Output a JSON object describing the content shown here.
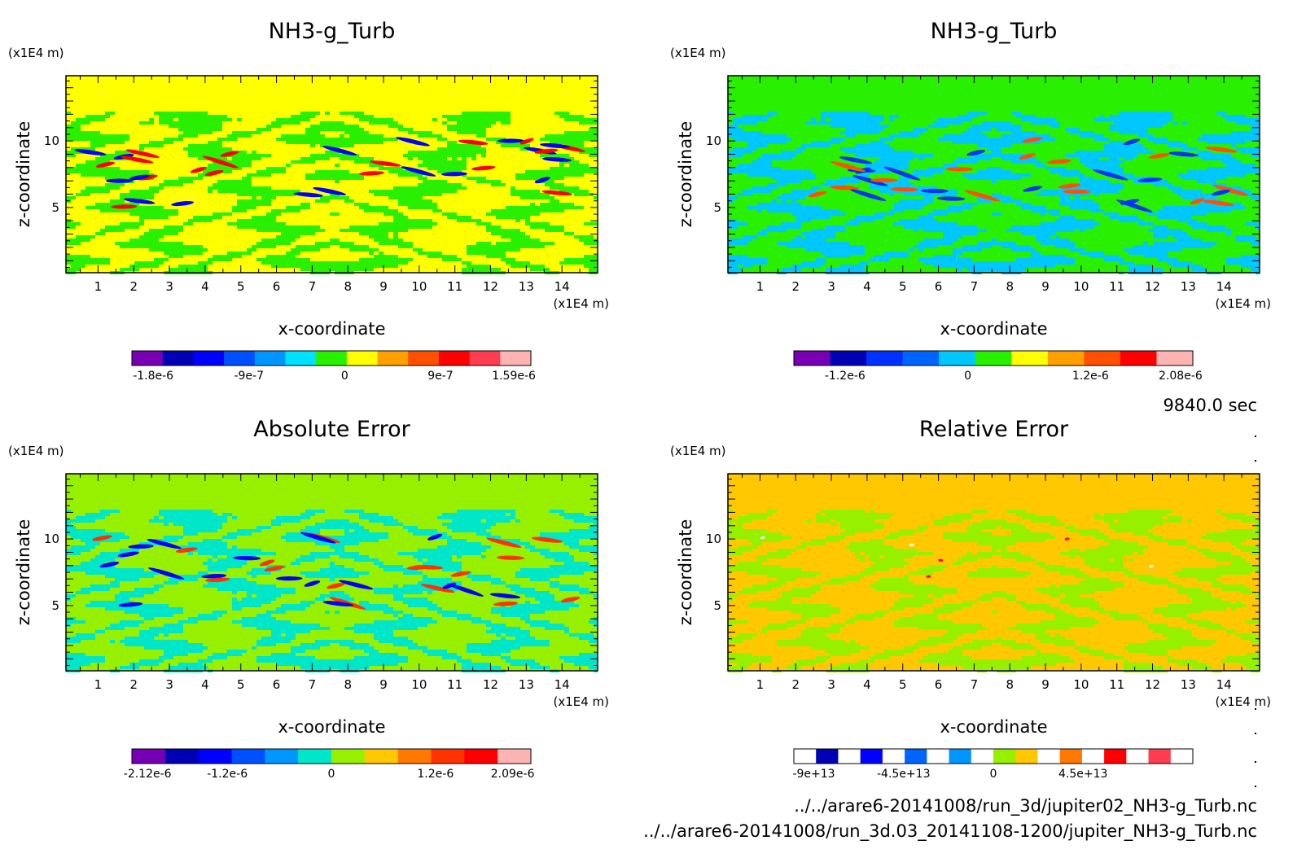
{
  "footer": {
    "time": "9840.0 sec",
    "files": [
      "../../arare6-20141008/run_3d/jupiter02_NH3-g_Turb.nc",
      "../../arare6-20141008/run_3d.03_20141108-1200/jupiter_NH3-g_Turb.nc"
    ]
  },
  "chart_data": [
    {
      "type": "heatmap",
      "title": "NH3-g_Turb",
      "xlabel": "x-coordinate",
      "ylabel": "z-coordinate",
      "x_unit": "(x1E4 m)",
      "y_unit": "(x1E4 m)",
      "xlim": [
        0.1,
        15.0
      ],
      "ylim": [
        0.1,
        14.9
      ],
      "x_ticks": [
        "1",
        "2",
        "3",
        "4",
        "5",
        "6",
        "7",
        "8",
        "9",
        "10",
        "11",
        "12",
        "13",
        "14"
      ],
      "y_ticks": [
        "5",
        "10"
      ],
      "colorbar": {
        "colors": [
          "#7800b4",
          "#0000b4",
          "#0000ff",
          "#0050ff",
          "#0096ff",
          "#00e0ff",
          "#28f000",
          "#ffff00",
          "#ffa000",
          "#ff5000",
          "#ff0000",
          "#ff3c50",
          "#ffb4b4"
        ],
        "tick_labels": [
          "-1.8e-6",
          "-9e-7",
          "0",
          "9e-7",
          "1.59e-6"
        ],
        "tick_values": [
          -1.8e-06,
          -9e-07,
          0,
          9e-07,
          1.59e-06
        ],
        "range": [
          -2e-06,
          1.75e-06
        ]
      },
      "regions": {
        "top_color": "#ffff00",
        "noise_colors": [
          "#ffff00",
          "#28f000"
        ]
      }
    },
    {
      "type": "heatmap",
      "title": "NH3-g_Turb",
      "xlabel": "x-coordinate",
      "ylabel": "z-coordinate",
      "x_unit": "(x1E4 m)",
      "y_unit": "(x1E4 m)",
      "xlim": [
        0.1,
        15.0
      ],
      "ylim": [
        0.1,
        14.9
      ],
      "x_ticks": [
        "1",
        "2",
        "3",
        "4",
        "5",
        "6",
        "7",
        "8",
        "9",
        "10",
        "11",
        "12",
        "13",
        "14"
      ],
      "y_ticks": [
        "5",
        "10"
      ],
      "colorbar": {
        "colors": [
          "#7800b4",
          "#0000b4",
          "#0032ff",
          "#0064ff",
          "#00c8ff",
          "#28f000",
          "#ffff00",
          "#ffa000",
          "#ff5000",
          "#ff0000",
          "#ffb4b4"
        ],
        "tick_labels": [
          "-1.2e-6",
          "0",
          "1.2e-6",
          "2.08e-6"
        ],
        "tick_values": [
          -1.2e-06,
          0,
          1.2e-06,
          2.08e-06
        ],
        "range": [
          -1.7e-06,
          2.2e-06
        ]
      },
      "regions": {
        "top_color": "#28f000",
        "noise_colors": [
          "#28f000",
          "#00c8ff"
        ]
      }
    },
    {
      "type": "heatmap",
      "title": "Absolute Error",
      "xlabel": "x-coordinate",
      "ylabel": "z-coordinate",
      "x_unit": "(x1E4 m)",
      "y_unit": "(x1E4 m)",
      "xlim": [
        0.1,
        15.0
      ],
      "ylim": [
        0.1,
        14.9
      ],
      "x_ticks": [
        "1",
        "2",
        "3",
        "4",
        "5",
        "6",
        "7",
        "8",
        "9",
        "10",
        "11",
        "12",
        "13",
        "14"
      ],
      "y_ticks": [
        "5",
        "10"
      ],
      "colorbar": {
        "colors": [
          "#7800b4",
          "#0000b4",
          "#0000ff",
          "#0050ff",
          "#0096ff",
          "#00e6c8",
          "#96f000",
          "#ffc800",
          "#ff7800",
          "#ff3200",
          "#ff0000",
          "#ffb4b4"
        ],
        "tick_labels": [
          "-2.12e-6",
          "-1.2e-6",
          "0",
          "1.2e-6",
          "2.09e-6"
        ],
        "tick_values": [
          -2.12e-06,
          -1.2e-06,
          0,
          1.2e-06,
          2.09e-06
        ],
        "range": [
          -2.3e-06,
          2.3e-06
        ]
      },
      "regions": {
        "top_color": "#96f000",
        "noise_colors": [
          "#96f000",
          "#00e6c8"
        ]
      }
    },
    {
      "type": "heatmap",
      "title": "Relative Error",
      "xlabel": "x-coordinate",
      "ylabel": "z-coordinate",
      "x_unit": "(x1E4 m)",
      "y_unit": "(x1E4 m)",
      "xlim": [
        0.1,
        15.0
      ],
      "ylim": [
        0.1,
        14.9
      ],
      "x_ticks": [
        "1",
        "2",
        "3",
        "4",
        "5",
        "6",
        "7",
        "8",
        "9",
        "10",
        "11",
        "12",
        "13",
        "14"
      ],
      "y_ticks": [
        "5",
        "10"
      ],
      "colorbar": {
        "colors": [
          "#ffffff",
          "#0000b4",
          "#ffffff",
          "#0000ff",
          "#ffffff",
          "#0064ff",
          "#ffffff",
          "#0096ff",
          "#ffffff",
          "#96f000",
          "#ffc800",
          "#ffffff",
          "#ff7800",
          "#ffffff",
          "#ff0000",
          "#ffffff",
          "#ff3c50",
          "#ffffff"
        ],
        "tick_labels": [
          "-9e+13",
          "-4.5e+13",
          "0",
          "4.5e+13"
        ],
        "tick_values": [
          -90000000000000.0,
          -45000000000000.0,
          0,
          45000000000000.0
        ],
        "range": [
          -100000000000000.0,
          100000000000000.0
        ]
      },
      "regions": {
        "top_color": "#ffc800",
        "noise_colors": [
          "#ffc800",
          "#96f000"
        ]
      }
    }
  ]
}
